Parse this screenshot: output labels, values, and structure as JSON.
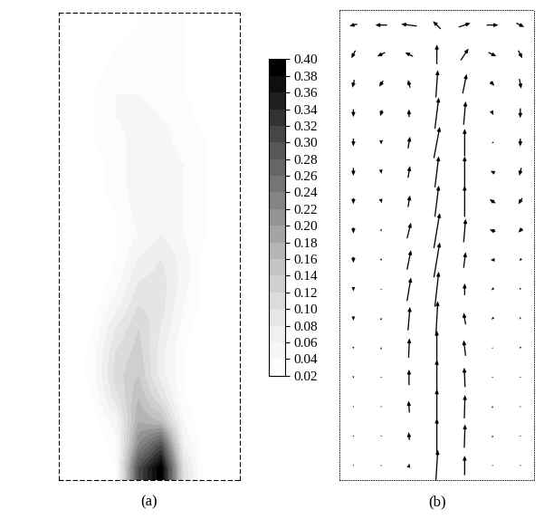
{
  "chart_data": [
    {
      "type": "heatmap",
      "xlabel": "(a)",
      "tick_labels": false,
      "cells": [
        [
          0,
          0,
          0.01,
          0.02,
          0.03,
          0.02,
          0.01,
          0
        ],
        [
          0,
          0.01,
          0.02,
          0.03,
          0.03,
          0.02,
          0.01,
          0
        ],
        [
          0,
          0.01,
          0.03,
          0.04,
          0.03,
          0.02,
          0.01,
          0
        ],
        [
          0,
          0.02,
          0.04,
          0.04,
          0.03,
          0.02,
          0.01,
          0
        ],
        [
          0,
          0.02,
          0.04,
          0.05,
          0.04,
          0.03,
          0.01,
          0
        ],
        [
          0,
          0.02,
          0.03,
          0.05,
          0.05,
          0.03,
          0.02,
          0
        ],
        [
          0,
          0.01,
          0.03,
          0.05,
          0.05,
          0.04,
          0.02,
          0
        ],
        [
          0,
          0.01,
          0.03,
          0.05,
          0.06,
          0.04,
          0.02,
          0
        ],
        [
          0,
          0.01,
          0.02,
          0.05,
          0.06,
          0.04,
          0.02,
          0
        ],
        [
          0,
          0,
          0.02,
          0.04,
          0.06,
          0.04,
          0.02,
          0
        ],
        [
          0,
          0,
          0.02,
          0.06,
          0.08,
          0.05,
          0.01,
          0
        ],
        [
          0,
          0,
          0.03,
          0.08,
          0.09,
          0.05,
          0.01,
          0
        ],
        [
          0,
          0.01,
          0.05,
          0.1,
          0.09,
          0.04,
          0.01,
          0
        ],
        [
          0,
          0.02,
          0.08,
          0.12,
          0.08,
          0.03,
          0,
          0
        ],
        [
          0,
          0.03,
          0.1,
          0.13,
          0.07,
          0.02,
          0,
          0
        ],
        [
          0,
          0.03,
          0.11,
          0.14,
          0.07,
          0.02,
          0,
          0
        ],
        [
          0,
          0.02,
          0.09,
          0.16,
          0.1,
          0.02,
          0,
          0
        ],
        [
          0,
          0.01,
          0.05,
          0.18,
          0.16,
          0.04,
          0,
          0
        ],
        [
          0,
          0,
          0.03,
          0.22,
          0.3,
          0.06,
          0,
          0
        ],
        [
          0,
          0,
          0.02,
          0.3,
          0.4,
          0.1,
          0,
          0
        ]
      ],
      "colorbar": {
        "range": [
          0.02,
          0.4
        ],
        "ticks": [
          0.02,
          0.04,
          0.06,
          0.08,
          {
            "value": 0.1,
            "label": "0.10"
          },
          0.12,
          0.14,
          0.16,
          0.18,
          {
            "value": 0.2,
            "label": "0.20"
          },
          0.22,
          0.24,
          0.26,
          0.28,
          {
            "value": 0.3,
            "label": "0.30"
          },
          0.32,
          0.34,
          0.36,
          0.38,
          {
            "value": 0.4,
            "label": "0.40"
          }
        ]
      }
    },
    {
      "type": "quiver",
      "xlabel": "(b)",
      "tick_labels": false,
      "color": "#000000",
      "u": [
        [
          -0.2,
          -0.3,
          -0.4,
          -0.2,
          0.3,
          0.3,
          0.2
        ],
        [
          -0.1,
          -0.2,
          -0.2,
          0,
          0.2,
          0.2,
          0.1
        ],
        [
          -0.05,
          -0.1,
          -0.05,
          0.05,
          0.1,
          0.1,
          0.05
        ],
        [
          0,
          -0.05,
          0,
          0.1,
          0.05,
          0.05,
          0
        ],
        [
          0,
          0,
          0.05,
          0.15,
          0,
          -0.05,
          0
        ],
        [
          0,
          0.02,
          0.05,
          0.1,
          0,
          -0.1,
          -0.05
        ],
        [
          0,
          0.02,
          0.05,
          0.1,
          0,
          -0.15,
          -0.1
        ],
        [
          0,
          0.02,
          0.1,
          0.15,
          0.05,
          -0.15,
          -0.1
        ],
        [
          0,
          0.02,
          0.1,
          0.15,
          0.05,
          -0.1,
          -0.05
        ],
        [
          0,
          0.02,
          0.1,
          0.1,
          0,
          -0.05,
          0
        ],
        [
          0,
          0.02,
          0.05,
          0.05,
          -0.05,
          -0.05,
          0
        ],
        [
          0,
          0,
          0.02,
          0,
          -0.05,
          0,
          0
        ],
        [
          0,
          0,
          0,
          0,
          -0.02,
          0,
          0
        ],
        [
          0,
          0,
          -0.02,
          0,
          0.02,
          0,
          0
        ],
        [
          0,
          0,
          -0.02,
          0,
          0.02,
          0,
          0
        ],
        [
          0,
          0,
          0.02,
          0.05,
          0,
          0,
          0
        ]
      ],
      "v": [
        [
          -0.05,
          0,
          0.05,
          0.2,
          0.1,
          0,
          -0.1
        ],
        [
          -0.2,
          -0.1,
          0.1,
          0.5,
          0.3,
          -0.1,
          -0.2
        ],
        [
          -0.2,
          -0.15,
          0.2,
          0.7,
          0.5,
          -0.1,
          -0.25
        ],
        [
          -0.2,
          -0.15,
          0.2,
          0.8,
          0.6,
          -0.1,
          -0.25
        ],
        [
          -0.2,
          -0.1,
          0.3,
          0.8,
          0.7,
          0,
          -0.2
        ],
        [
          -0.2,
          -0.1,
          0.3,
          0.8,
          0.8,
          0.05,
          -0.2
        ],
        [
          -0.15,
          -0.1,
          0.3,
          0.8,
          0.8,
          0.1,
          -0.15
        ],
        [
          -0.15,
          -0.05,
          0.4,
          0.9,
          0.6,
          0.05,
          -0.1
        ],
        [
          -0.15,
          -0.05,
          0.5,
          0.9,
          0.4,
          0,
          -0.05
        ],
        [
          -0.1,
          0,
          0.6,
          0.9,
          0.3,
          -0.05,
          -0.05
        ],
        [
          -0.1,
          0.05,
          0.6,
          0.9,
          0.3,
          -0.05,
          -0.05
        ],
        [
          -0.05,
          0.05,
          0.5,
          0.9,
          0.4,
          0,
          -0.05
        ],
        [
          -0.05,
          0,
          0.4,
          0.9,
          0.5,
          0,
          0
        ],
        [
          0,
          0,
          0.3,
          0.9,
          0.6,
          0.05,
          0
        ],
        [
          0,
          0,
          0.2,
          0.9,
          0.6,
          0.05,
          0
        ],
        [
          0,
          0,
          0.1,
          0.8,
          0.5,
          0,
          0
        ]
      ]
    }
  ]
}
